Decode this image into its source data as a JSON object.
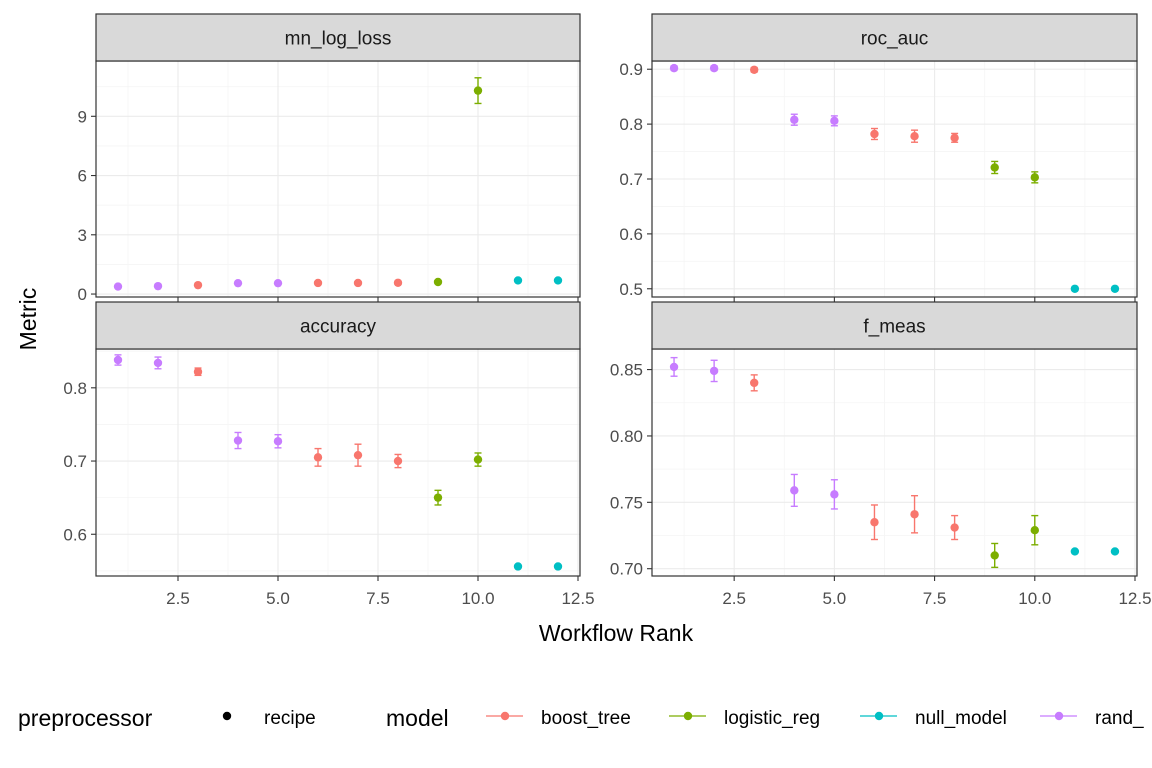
{
  "axes": {
    "xlabel": "Workflow Rank",
    "ylabel": "Metric"
  },
  "legend": {
    "preprocessor_title": "preprocessor",
    "preprocessor_items": [
      "recipe"
    ],
    "model_title": "model",
    "model_items": [
      {
        "name": "boost_tree",
        "color": "#F8766D"
      },
      {
        "name": "logistic_reg",
        "color": "#7CAE00"
      },
      {
        "name": "null_model",
        "color": "#00BFC4"
      },
      {
        "name": "rand_",
        "color": "#C77CFF"
      }
    ]
  },
  "colors": {
    "strip_bg": "#D9D9D9",
    "grid_major": "#EBEBEB",
    "grid_minor": "#F5F5F5",
    "panel_border": "#333333"
  },
  "chart_data": {
    "type": "scatter",
    "x_ticks": [
      2.5,
      5.0,
      7.5,
      10.0,
      12.5
    ],
    "x_tick_labels": [
      "2.5",
      "5.0",
      "7.5",
      "10.0",
      "12.5"
    ],
    "xlim": [
      0.45,
      12.55
    ],
    "ranks": [
      1,
      2,
      3,
      4,
      5,
      6,
      7,
      8,
      9,
      10,
      11,
      12
    ],
    "rank_models": [
      "rand_forest",
      "rand_forest",
      "boost_tree",
      "rand_forest",
      "rand_forest",
      "boost_tree",
      "boost_tree",
      "boost_tree",
      "logistic_reg",
      "logistic_reg",
      "null_model",
      "null_model"
    ],
    "panels": [
      {
        "title": "mn_log_loss",
        "ylim": [
          -0.15,
          11.8
        ],
        "y_ticks": [
          0,
          3,
          6,
          9
        ],
        "y_tick_labels": [
          "0",
          "3",
          "6",
          "9"
        ],
        "values": [
          0.38,
          0.4,
          0.45,
          0.55,
          0.55,
          0.56,
          0.56,
          0.57,
          0.61,
          10.3,
          0.69,
          0.69
        ],
        "errors": [
          0.05,
          0.05,
          0.03,
          0.06,
          0.06,
          0.05,
          0.05,
          0.05,
          0.05,
          0.65,
          0.0,
          0.0
        ]
      },
      {
        "title": "roc_auc",
        "ylim": [
          0.485,
          0.915
        ],
        "y_ticks": [
          0.5,
          0.6,
          0.7,
          0.8,
          0.9
        ],
        "y_tick_labels": [
          "0.5",
          "0.6",
          "0.7",
          "0.8",
          "0.9"
        ],
        "values": [
          0.902,
          0.902,
          0.899,
          0.808,
          0.806,
          0.782,
          0.778,
          0.775,
          0.721,
          0.703,
          0.5,
          0.5
        ],
        "errors": [
          0.004,
          0.004,
          0.004,
          0.01,
          0.009,
          0.01,
          0.011,
          0.008,
          0.011,
          0.01,
          0.0,
          0.0
        ]
      },
      {
        "title": "accuracy",
        "ylim": [
          0.543,
          0.853
        ],
        "y_ticks": [
          0.6,
          0.7,
          0.8
        ],
        "y_tick_labels": [
          "0.6",
          "0.7",
          "0.8"
        ],
        "values": [
          0.838,
          0.834,
          0.822,
          0.728,
          0.727,
          0.705,
          0.708,
          0.7,
          0.65,
          0.702,
          0.556,
          0.556
        ],
        "errors": [
          0.007,
          0.008,
          0.005,
          0.011,
          0.009,
          0.012,
          0.015,
          0.009,
          0.01,
          0.009,
          0.0,
          0.0
        ]
      },
      {
        "title": "f_meas",
        "ylim": [
          0.6945,
          0.8655
        ],
        "y_ticks": [
          0.7,
          0.75,
          0.8,
          0.85
        ],
        "y_tick_labels": [
          "0.70",
          "0.75",
          "0.80",
          "0.85"
        ],
        "values": [
          0.852,
          0.849,
          0.84,
          0.759,
          0.756,
          0.735,
          0.741,
          0.731,
          0.71,
          0.729,
          0.713,
          0.713
        ],
        "errors": [
          0.007,
          0.008,
          0.006,
          0.012,
          0.011,
          0.013,
          0.014,
          0.009,
          0.009,
          0.011,
          0.0,
          0.0
        ]
      }
    ]
  }
}
